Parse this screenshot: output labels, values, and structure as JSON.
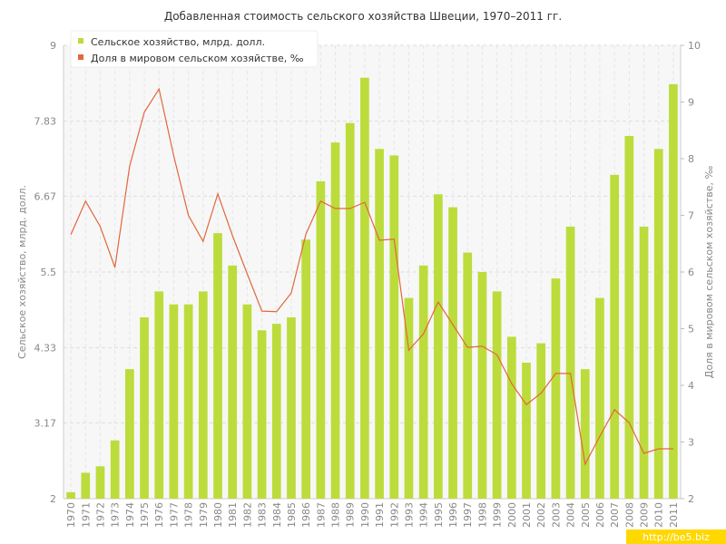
{
  "chart_data": {
    "type": "bar_line",
    "title": "Добавленная стоимость сельского хозяйства Швеции, 1970–2011 гг.",
    "y_label": "Сельское хозяйство, млрд. долл.",
    "y2_label": "Доля в мировом сельском хозяйстве, ‰",
    "watermark": "http://be5.biz",
    "categories": [
      "1970",
      "1971",
      "1972",
      "1973",
      "1974",
      "1975",
      "1976",
      "1977",
      "1978",
      "1979",
      "1980",
      "1981",
      "1982",
      "1983",
      "1984",
      "1985",
      "1986",
      "1987",
      "1988",
      "1989",
      "1990",
      "1991",
      "1992",
      "1993",
      "1994",
      "1995",
      "1996",
      "1997",
      "1998",
      "1999",
      "2000",
      "2001",
      "2002",
      "2003",
      "2004",
      "2005",
      "2006",
      "2007",
      "2008",
      "2009",
      "2010",
      "2011"
    ],
    "series": [
      {
        "name": "Сельское хозяйство, млрд. долл.",
        "color": "#bcdc3c",
        "type": "bar",
        "values": [
          2.1,
          2.4,
          2.5,
          2.9,
          4.0,
          4.8,
          5.2,
          5.0,
          5.0,
          5.2,
          6.1,
          5.6,
          5.0,
          4.6,
          4.7,
          4.8,
          6.0,
          6.9,
          7.5,
          7.8,
          8.5,
          7.4,
          7.3,
          5.1,
          5.6,
          6.7,
          6.5,
          5.8,
          5.5,
          5.2,
          4.5,
          4.1,
          4.4,
          5.4,
          6.2,
          4.0,
          5.1,
          7.0,
          7.6,
          6.2,
          7.4,
          8.4
        ]
      },
      {
        "name": "Доля в мировом сельском хозяйстве, ‰",
        "color": "#e0683c",
        "type": "line",
        "axis": "y2",
        "values": [
          6.66,
          7.25,
          6.8,
          6.08,
          7.87,
          8.82,
          9.23,
          8.05,
          7.0,
          6.54,
          7.38,
          6.64,
          5.97,
          5.31,
          5.3,
          5.63,
          6.67,
          7.25,
          7.12,
          7.12,
          7.23,
          6.56,
          6.58,
          4.62,
          4.91,
          5.47,
          5.07,
          4.67,
          4.69,
          4.54,
          4.03,
          3.66,
          3.86,
          4.21,
          4.21,
          2.61,
          3.1,
          3.57,
          3.34,
          2.8,
          2.88,
          2.88
        ]
      }
    ],
    "ylim": [
      2,
      9
    ],
    "yticks": [
      2,
      3.17,
      4.33,
      5.5,
      6.67,
      7.83,
      9
    ],
    "y2lim": [
      2,
      10
    ],
    "y2ticks": [
      2,
      3,
      4,
      5,
      6,
      7,
      8,
      9,
      10
    ],
    "grid": true,
    "legend": "top-left"
  }
}
